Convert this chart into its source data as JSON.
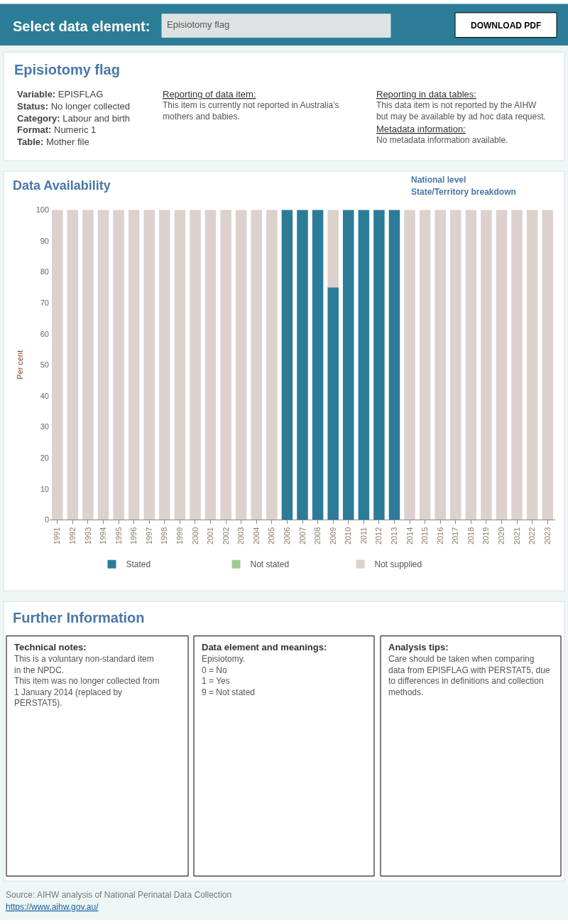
{
  "chart_data": [
    {
      "type": "other",
      "title": "Episiotomy flag",
      "annotations": [
        "Select data element:",
        "Episiotomy flag",
        "DOWNLOAD PDF",
        "Variable: EPISFLAG",
        "Status: No longer collected",
        "Category: Labour and birth",
        "Format: Numeric 1",
        "Table: Mother file",
        "Reporting of data item:",
        "This item is currently not reported in Australia’s\nmothers and babies.",
        "Reporting in data tables:",
        "This data item is not reported by the AIHW\nbut may be available by ad hoc data request.",
        "Metadata information:",
        "No metadata information available."
      ]
    },
    {
      "type": "bar",
      "title": "Data Availability",
      "ylabel": "Per cent",
      "stacked": true,
      "legend": "bottom",
      "ylim": [
        0,
        100
      ],
      "yticks": [
        0,
        10,
        20,
        30,
        40,
        50,
        60,
        70,
        80,
        90,
        100
      ],
      "annotations": [
        "National level",
        "State/Territory breakdown"
      ],
      "categories": [
        "1991",
        "1992",
        "1993",
        "1994",
        "1995",
        "1996",
        "1997",
        "1998",
        "1999",
        "2000",
        "2001",
        "2002",
        "2003",
        "2004",
        "2005",
        "2006",
        "2007",
        "2008",
        "2009",
        "2010",
        "2011",
        "2012",
        "2013",
        "2014",
        "2015",
        "2016",
        "2017",
        "2018",
        "2019",
        "2020",
        "2021",
        "2022",
        "2023"
      ],
      "series": [
        {
          "name": "Stated",
          "color": "#2c7c99",
          "values": [
            0,
            0,
            0,
            0,
            0,
            0,
            0,
            0,
            0,
            0,
            0,
            0,
            0,
            0,
            0,
            100,
            100,
            100,
            75,
            100,
            100,
            100,
            100,
            0,
            0,
            0,
            0,
            0,
            0,
            0,
            0,
            0,
            0
          ]
        },
        {
          "name": "Not stated",
          "color": "#9ccc8c",
          "values": [
            0,
            0,
            0,
            0,
            0,
            0,
            0,
            0,
            0,
            0,
            0,
            0,
            0,
            0,
            0,
            0,
            0,
            0,
            0,
            0,
            0,
            0,
            0,
            0,
            0,
            0,
            0,
            0,
            0,
            0,
            0,
            0,
            0
          ]
        },
        {
          "name": "Not supplied",
          "color": "#dcd1cc",
          "values": [
            100,
            100,
            100,
            100,
            100,
            100,
            100,
            100,
            100,
            100,
            100,
            100,
            100,
            100,
            100,
            0,
            0,
            0,
            25,
            0,
            0,
            0,
            0,
            100,
            100,
            100,
            100,
            100,
            100,
            100,
            100,
            100,
            100
          ]
        }
      ]
    },
    {
      "type": "other",
      "title": "Further Information",
      "annotations": [
        "Technical notes:",
        "This is a voluntary non-standard item\nin the NPDC.\nThis item was no longer collected from\n1 January 2014 (replaced by\nPERSTAT5).",
        "Data element and meanings:",
        "Episiotomy.\n0 = No\n1 = Yes\n9 = Not stated",
        "Analysis tips:",
        "Care should be taken when comparing\ndata from EPISFLAG with PERSTAT5, due\nto differences in definitions and collection\nmethods.",
        "Source: AIHW analysis of National Perinatal Data Collection",
        "https://www.aihw.gov.au/"
      ]
    }
  ]
}
